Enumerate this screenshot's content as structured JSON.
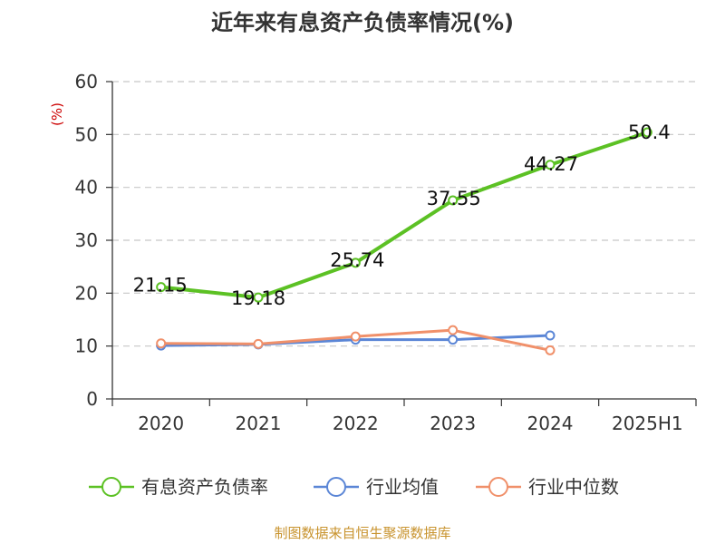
{
  "chart_data": {
    "type": "line",
    "title": "近年来有息资产负债率情况(%)",
    "y_unit": "(%)",
    "categories": [
      "2020",
      "2021",
      "2022",
      "2023",
      "2024",
      "2025H1"
    ],
    "ylim": [
      0,
      60
    ],
    "y_ticks": [
      0,
      10,
      20,
      30,
      40,
      50,
      60
    ],
    "grid": true,
    "legend_position": "bottom",
    "series": [
      {
        "name": "有息资产负债率",
        "color": "#5cc124",
        "values": [
          21.15,
          19.18,
          25.74,
          37.55,
          44.27,
          50.4
        ],
        "labels": [
          "21.15",
          "19.18",
          "25.74",
          "37.55",
          "44.27",
          "50.4"
        ]
      },
      {
        "name": "行业均值",
        "color": "#5b86d6",
        "values": [
          10.1,
          10.3,
          11.2,
          11.2,
          12.0,
          null
        ]
      },
      {
        "name": "行业中位数",
        "color": "#f0906a",
        "values": [
          10.5,
          10.4,
          11.8,
          13.0,
          9.2,
          null
        ]
      }
    ],
    "source": "制图数据来自恒生聚源数据库"
  }
}
